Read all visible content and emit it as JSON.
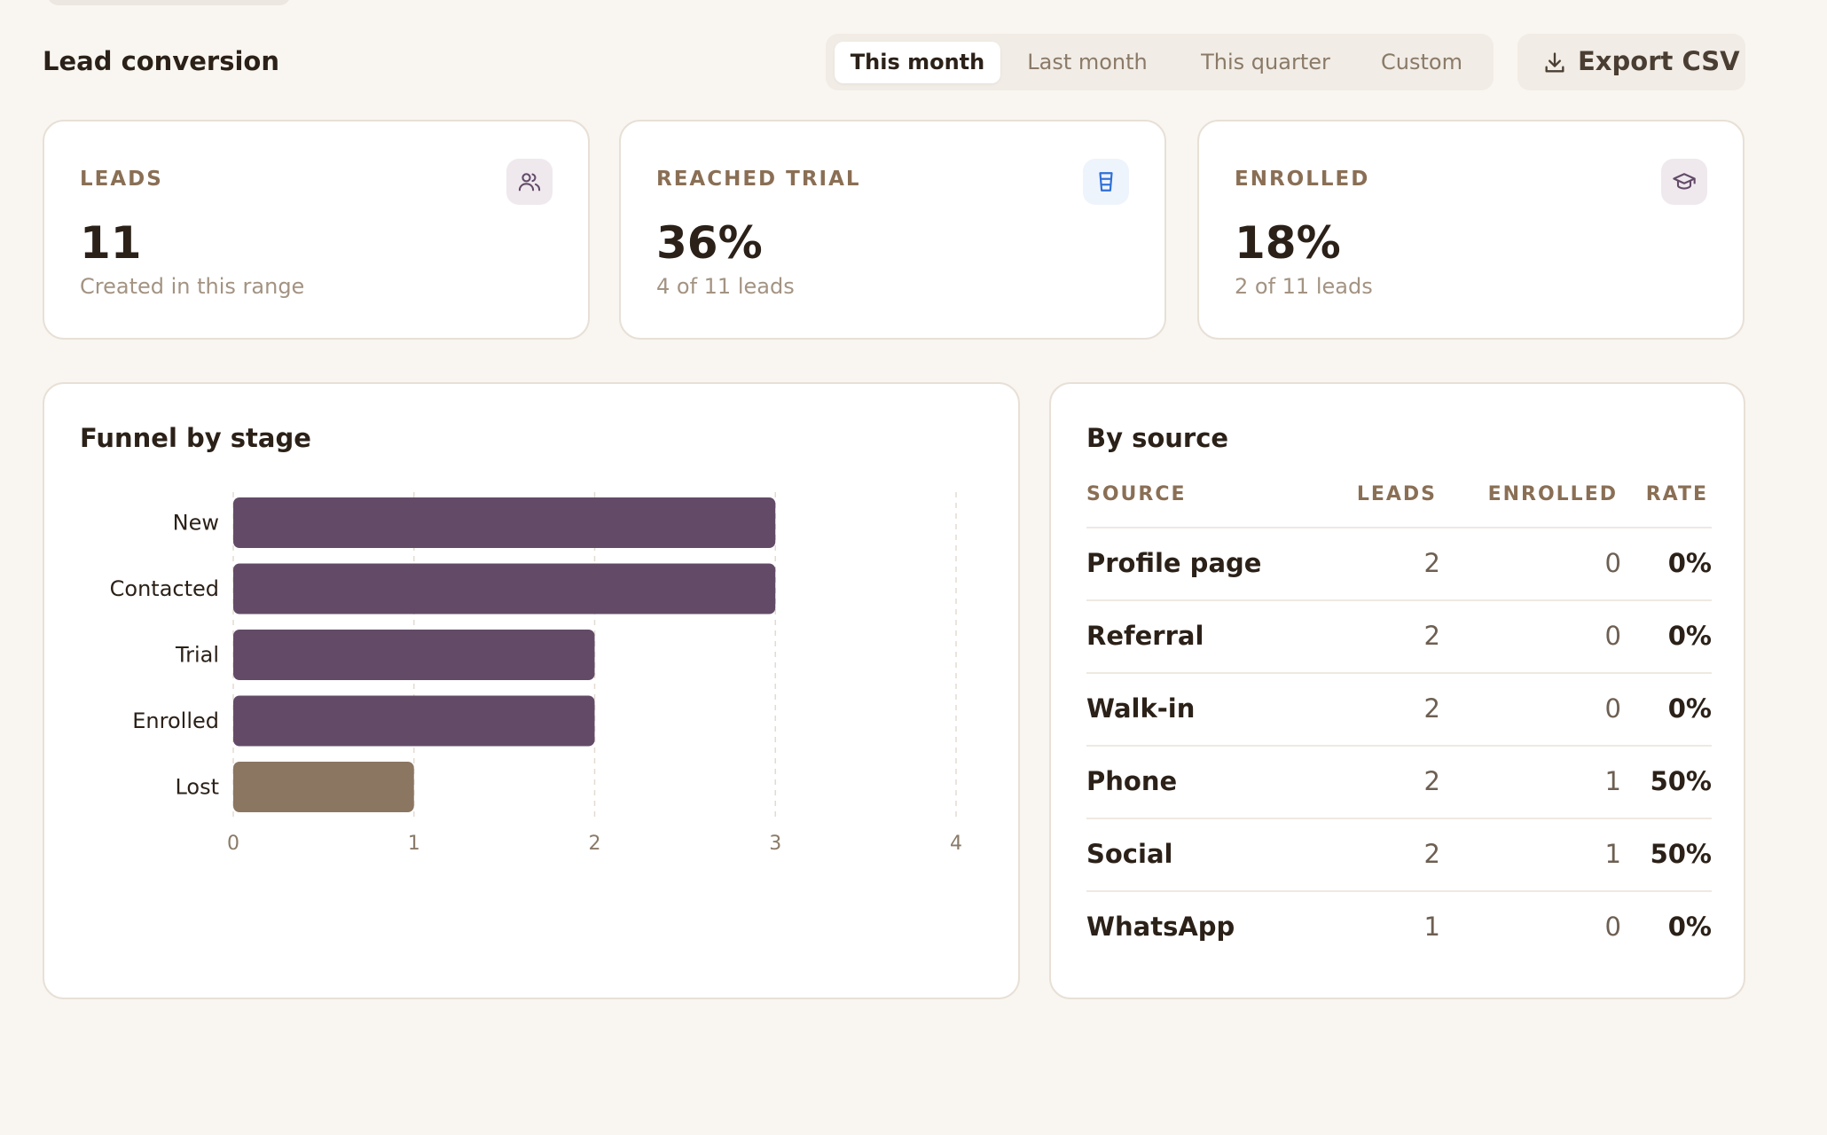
{
  "header": {
    "title": "Lead conversion",
    "ranges": [
      "This month",
      "Last month",
      "This quarter",
      "Custom"
    ],
    "active_range": "This month",
    "export_label": "Export CSV"
  },
  "stats": [
    {
      "label": "LEADS",
      "value": "11",
      "sub": "Created in this range",
      "icon": "users-icon"
    },
    {
      "label": "REACHED TRIAL",
      "value": "36%",
      "sub": "4 of 11 leads",
      "icon": "cup-icon"
    },
    {
      "label": "ENROLLED",
      "value": "18%",
      "sub": "2 of 11 leads",
      "icon": "graduation-cap-icon"
    }
  ],
  "funnel": {
    "title": "Funnel by stage"
  },
  "chart_data": {
    "type": "bar",
    "orientation": "horizontal",
    "categories": [
      "New",
      "Contacted",
      "Trial",
      "Enrolled",
      "Lost"
    ],
    "values": [
      3,
      3,
      2,
      2,
      1
    ],
    "xlim": [
      0,
      4
    ],
    "xticks": [
      0,
      1,
      2,
      3,
      4
    ],
    "grid": true,
    "colors": [
      "#634b68",
      "#634b68",
      "#634b68",
      "#634b68",
      "#8b7662"
    ]
  },
  "by_source": {
    "title": "By source",
    "columns": [
      "SOURCE",
      "LEADS",
      "ENROLLED",
      "RATE"
    ],
    "rows": [
      {
        "source": "Profile page",
        "leads": "2",
        "enrolled": "0",
        "rate": "0%"
      },
      {
        "source": "Referral",
        "leads": "2",
        "enrolled": "0",
        "rate": "0%"
      },
      {
        "source": "Walk-in",
        "leads": "2",
        "enrolled": "0",
        "rate": "0%"
      },
      {
        "source": "Phone",
        "leads": "2",
        "enrolled": "1",
        "rate": "50%"
      },
      {
        "source": "Social",
        "leads": "2",
        "enrolled": "1",
        "rate": "50%"
      },
      {
        "source": "WhatsApp",
        "leads": "1",
        "enrolled": "0",
        "rate": "0%"
      }
    ]
  },
  "colors": {
    "accent": "#634b68",
    "lost": "#8b7662",
    "background": "#f9f6f1",
    "trial_icon": "#2f6fd6"
  }
}
